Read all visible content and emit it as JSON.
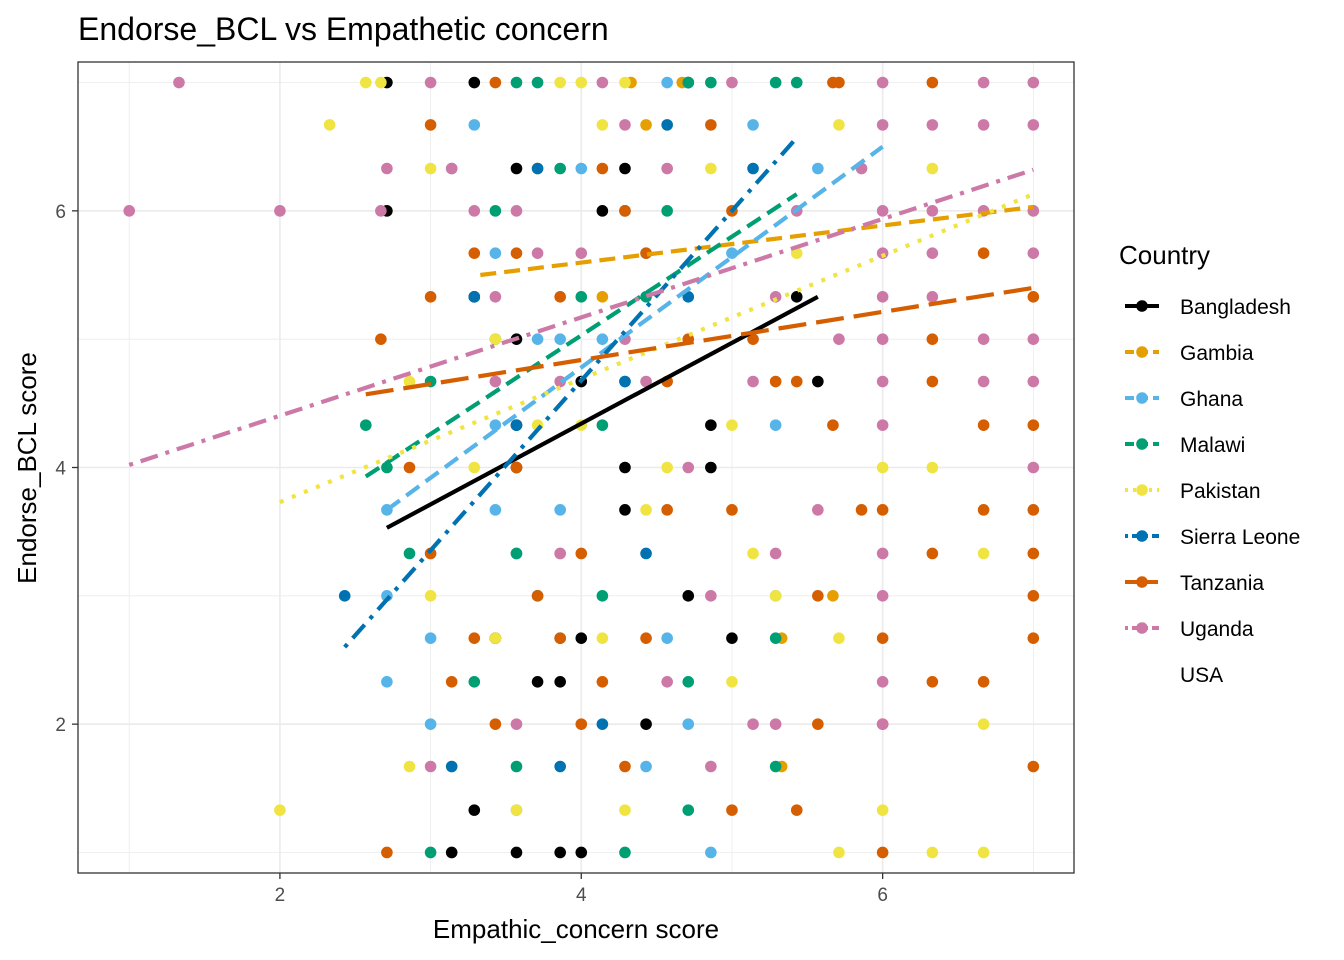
{
  "chart_data": {
    "type": "scatter",
    "title": "Endorse_BCL vs Empathetic concern",
    "xlabel": "Empathic_concern score",
    "ylabel": "Endorse_BCL score",
    "xlim": [
      0.66,
      7.27
    ],
    "ylim": [
      0.84,
      7.16
    ],
    "x_ticks": [
      2,
      4,
      6
    ],
    "y_ticks": [
      2,
      4,
      6
    ],
    "grid": true,
    "legend": {
      "title": "Country",
      "position": "right",
      "entries": [
        "Bangladesh",
        "Gambia",
        "Ghana",
        "Malawi",
        "Pakistan",
        "Sierra Leone",
        "Tanzania",
        "Uganda",
        "USA"
      ]
    },
    "series": [
      {
        "name": "Bangladesh",
        "color": "#000000",
        "line_style": "solid",
        "trend": [
          [
            2.71,
            3.53
          ],
          [
            5.57,
            5.33
          ]
        ],
        "points": [
          [
            2.71,
            7.0
          ],
          [
            2.71,
            6.0
          ],
          [
            3.29,
            7.0
          ],
          [
            3.29,
            5.33
          ],
          [
            3.57,
            6.33
          ],
          [
            3.57,
            5.0
          ],
          [
            3.57,
            4.33
          ],
          [
            3.57,
            4.0
          ],
          [
            3.71,
            2.33
          ],
          [
            3.86,
            1.0
          ],
          [
            4.0,
            1.0
          ],
          [
            4.0,
            2.67
          ],
          [
            4.14,
            6.0
          ],
          [
            4.29,
            6.33
          ],
          [
            4.29,
            4.0
          ],
          [
            4.43,
            2.0
          ],
          [
            4.71,
            7.0
          ],
          [
            4.71,
            3.0
          ],
          [
            4.86,
            4.33
          ],
          [
            4.86,
            4.0
          ],
          [
            5.0,
            2.67
          ],
          [
            5.57,
            4.67
          ],
          [
            5.43,
            5.33
          ],
          [
            3.43,
            2.67
          ],
          [
            3.29,
            1.33
          ],
          [
            3.14,
            1.0
          ],
          [
            3.57,
            1.0
          ],
          [
            4.0,
            4.67
          ],
          [
            3.86,
            2.33
          ],
          [
            4.29,
            3.67
          ]
        ]
      },
      {
        "name": "Gambia",
        "color": "#E69F00",
        "line_style": "dashed",
        "trend": [
          [
            3.33,
            5.5
          ],
          [
            7.0,
            6.03
          ]
        ],
        "points": [
          [
            4.33,
            7.0
          ],
          [
            4.67,
            7.0
          ],
          [
            4.43,
            6.67
          ],
          [
            5.33,
            2.67
          ],
          [
            5.67,
            3.0
          ],
          [
            5.33,
            1.67
          ],
          [
            3.71,
            6.33
          ],
          [
            4.14,
            5.33
          ]
        ]
      },
      {
        "name": "Ghana",
        "color": "#56B4E9",
        "line_style": "dashed",
        "trend": [
          [
            2.71,
            3.67
          ],
          [
            6.0,
            6.5
          ]
        ],
        "points": [
          [
            2.71,
            3.67
          ],
          [
            2.71,
            3.0
          ],
          [
            2.71,
            2.33
          ],
          [
            3.0,
            2.67
          ],
          [
            3.0,
            2.0
          ],
          [
            3.14,
            6.33
          ],
          [
            3.29,
            6.67
          ],
          [
            3.43,
            5.67
          ],
          [
            3.43,
            3.67
          ],
          [
            3.57,
            3.33
          ],
          [
            3.57,
            1.33
          ],
          [
            3.71,
            5.0
          ],
          [
            3.86,
            3.67
          ],
          [
            4.0,
            6.33
          ],
          [
            4.14,
            5.0
          ],
          [
            4.29,
            4.67
          ],
          [
            4.43,
            1.67
          ],
          [
            4.57,
            7.0
          ],
          [
            4.71,
            2.0
          ],
          [
            4.86,
            1.0
          ],
          [
            5.14,
            6.67
          ],
          [
            5.29,
            4.33
          ],
          [
            5.57,
            6.33
          ],
          [
            5.29,
            3.0
          ],
          [
            4.57,
            2.67
          ],
          [
            3.43,
            4.33
          ],
          [
            3.86,
            5.0
          ],
          [
            4.43,
            5.67
          ],
          [
            5.0,
            5.67
          ]
        ]
      },
      {
        "name": "Malawi",
        "color": "#009E73",
        "line_style": "dashed",
        "trend": [
          [
            2.57,
            3.93
          ],
          [
            5.43,
            6.13
          ]
        ],
        "points": [
          [
            2.57,
            4.33
          ],
          [
            2.71,
            4.0
          ],
          [
            2.86,
            3.33
          ],
          [
            3.0,
            1.0
          ],
          [
            3.0,
            4.67
          ],
          [
            3.29,
            2.33
          ],
          [
            3.43,
            5.0
          ],
          [
            3.57,
            3.33
          ],
          [
            3.71,
            7.0
          ],
          [
            3.57,
            7.0
          ],
          [
            3.86,
            6.33
          ],
          [
            4.14,
            4.33
          ],
          [
            4.29,
            1.0
          ],
          [
            4.43,
            5.33
          ],
          [
            4.57,
            6.0
          ],
          [
            4.71,
            2.33
          ],
          [
            4.71,
            7.0
          ],
          [
            4.86,
            7.0
          ],
          [
            5.29,
            7.0
          ],
          [
            5.43,
            7.0
          ],
          [
            5.29,
            2.67
          ],
          [
            5.29,
            1.67
          ],
          [
            4.14,
            3.0
          ],
          [
            3.71,
            3.0
          ],
          [
            4.0,
            5.33
          ],
          [
            3.86,
            2.67
          ],
          [
            4.71,
            1.33
          ],
          [
            3.57,
            1.67
          ],
          [
            3.43,
            6.0
          ]
        ]
      },
      {
        "name": "Pakistan",
        "color": "#F0E442",
        "line_style": "dotted",
        "trend": [
          [
            2.0,
            3.73
          ],
          [
            7.0,
            6.13
          ]
        ],
        "points": [
          [
            2.0,
            1.33
          ],
          [
            2.33,
            6.67
          ],
          [
            2.57,
            7.0
          ],
          [
            2.67,
            7.0
          ],
          [
            2.86,
            1.67
          ],
          [
            2.86,
            4.67
          ],
          [
            3.0,
            6.33
          ],
          [
            3.14,
            1.67
          ],
          [
            3.29,
            4.0
          ],
          [
            3.43,
            2.67
          ],
          [
            3.57,
            1.33
          ],
          [
            3.71,
            4.33
          ],
          [
            3.86,
            3.33
          ],
          [
            4.0,
            4.33
          ],
          [
            4.14,
            2.67
          ],
          [
            4.29,
            1.33
          ],
          [
            4.43,
            3.67
          ],
          [
            4.57,
            4.0
          ],
          [
            4.86,
            6.33
          ],
          [
            5.0,
            2.33
          ],
          [
            5.14,
            3.33
          ],
          [
            5.29,
            3.0
          ],
          [
            5.43,
            5.67
          ],
          [
            5.71,
            6.67
          ],
          [
            5.71,
            1.0
          ],
          [
            5.71,
            2.67
          ],
          [
            6.0,
            4.0
          ],
          [
            6.0,
            1.33
          ],
          [
            6.33,
            4.0
          ],
          [
            6.33,
            6.33
          ],
          [
            6.67,
            1.0
          ],
          [
            6.67,
            2.0
          ],
          [
            6.67,
            3.33
          ],
          [
            7.0,
            6.0
          ],
          [
            6.33,
            1.0
          ],
          [
            4.29,
            7.0
          ],
          [
            4.57,
            6.67
          ],
          [
            5.0,
            4.33
          ],
          [
            4.14,
            6.67
          ],
          [
            3.86,
            7.0
          ],
          [
            3.43,
            5.0
          ],
          [
            3.0,
            3.0
          ],
          [
            4.0,
            7.0
          ]
        ]
      },
      {
        "name": "Sierra Leone",
        "color": "#0072B2",
        "line_style": "dotdash",
        "trend": [
          [
            2.43,
            2.6
          ],
          [
            5.43,
            6.57
          ]
        ],
        "points": [
          [
            2.43,
            3.0
          ],
          [
            3.14,
            1.67
          ],
          [
            3.71,
            6.33
          ],
          [
            3.86,
            1.67
          ],
          [
            4.14,
            2.0
          ],
          [
            4.29,
            6.0
          ],
          [
            4.57,
            6.67
          ],
          [
            5.14,
            6.33
          ],
          [
            4.71,
            5.33
          ],
          [
            3.57,
            4.33
          ],
          [
            4.43,
            3.33
          ],
          [
            3.29,
            5.33
          ],
          [
            4.29,
            4.67
          ]
        ]
      },
      {
        "name": "Tanzania",
        "color": "#D55E00",
        "line_style": "longdash",
        "trend": [
          [
            2.57,
            4.57
          ],
          [
            7.0,
            5.4
          ]
        ],
        "points": [
          [
            2.67,
            5.0
          ],
          [
            2.71,
            1.0
          ],
          [
            2.86,
            4.0
          ],
          [
            3.0,
            6.67
          ],
          [
            3.0,
            5.33
          ],
          [
            3.0,
            3.33
          ],
          [
            3.14,
            2.33
          ],
          [
            3.29,
            5.67
          ],
          [
            3.29,
            2.67
          ],
          [
            3.43,
            7.0
          ],
          [
            3.43,
            2.0
          ],
          [
            3.57,
            4.0
          ],
          [
            3.57,
            5.67
          ],
          [
            3.71,
            3.0
          ],
          [
            3.86,
            5.33
          ],
          [
            4.0,
            2.0
          ],
          [
            4.0,
            3.33
          ],
          [
            4.14,
            2.33
          ],
          [
            4.14,
            6.33
          ],
          [
            4.29,
            1.67
          ],
          [
            4.43,
            2.67
          ],
          [
            4.43,
            5.67
          ],
          [
            4.57,
            3.67
          ],
          [
            4.57,
            4.67
          ],
          [
            4.71,
            5.0
          ],
          [
            4.86,
            6.67
          ],
          [
            5.0,
            1.33
          ],
          [
            5.0,
            3.67
          ],
          [
            5.14,
            5.0
          ],
          [
            5.29,
            4.67
          ],
          [
            5.43,
            1.33
          ],
          [
            5.43,
            4.67
          ],
          [
            5.57,
            3.0
          ],
          [
            5.57,
            2.0
          ],
          [
            5.67,
            4.33
          ],
          [
            5.67,
            7.0
          ],
          [
            5.71,
            7.0
          ],
          [
            5.86,
            3.67
          ],
          [
            6.0,
            3.67
          ],
          [
            6.0,
            2.67
          ],
          [
            6.0,
            2.0
          ],
          [
            6.0,
            1.0
          ],
          [
            6.33,
            4.67
          ],
          [
            6.33,
            5.0
          ],
          [
            6.33,
            3.33
          ],
          [
            6.33,
            2.33
          ],
          [
            6.67,
            2.33
          ],
          [
            6.67,
            3.67
          ],
          [
            6.67,
            4.33
          ],
          [
            7.0,
            5.33
          ],
          [
            7.0,
            4.33
          ],
          [
            7.0,
            3.67
          ],
          [
            7.0,
            3.33
          ],
          [
            7.0,
            3.0
          ],
          [
            7.0,
            2.67
          ],
          [
            7.0,
            1.67
          ],
          [
            6.67,
            5.67
          ],
          [
            6.33,
            7.0
          ],
          [
            5.0,
            6.0
          ],
          [
            4.29,
            6.0
          ],
          [
            3.86,
            2.67
          ]
        ]
      },
      {
        "name": "Uganda",
        "color": "#CC79A7",
        "line_style": "dotdash",
        "trend": [
          [
            1.0,
            4.02
          ],
          [
            7.0,
            6.32
          ]
        ],
        "points": [
          [
            1.0,
            6.0
          ],
          [
            1.33,
            7.0
          ],
          [
            2.0,
            6.0
          ],
          [
            2.71,
            6.33
          ],
          [
            2.67,
            6.0
          ],
          [
            3.0,
            7.0
          ],
          [
            3.0,
            1.67
          ],
          [
            3.14,
            6.33
          ],
          [
            3.29,
            6.0
          ],
          [
            3.43,
            5.33
          ],
          [
            3.57,
            2.0
          ],
          [
            3.71,
            5.67
          ],
          [
            3.86,
            4.67
          ],
          [
            4.0,
            5.67
          ],
          [
            4.14,
            7.0
          ],
          [
            4.29,
            5.0
          ],
          [
            4.43,
            4.67
          ],
          [
            4.57,
            2.33
          ],
          [
            4.71,
            4.0
          ],
          [
            4.86,
            3.0
          ],
          [
            5.0,
            7.0
          ],
          [
            5.14,
            4.67
          ],
          [
            5.29,
            5.33
          ],
          [
            5.43,
            6.0
          ],
          [
            5.57,
            3.67
          ],
          [
            5.71,
            5.0
          ],
          [
            5.86,
            6.33
          ],
          [
            6.0,
            7.0
          ],
          [
            6.0,
            6.67
          ],
          [
            6.0,
            6.0
          ],
          [
            6.0,
            5.67
          ],
          [
            6.0,
            5.33
          ],
          [
            6.0,
            5.0
          ],
          [
            6.0,
            4.67
          ],
          [
            6.0,
            4.33
          ],
          [
            6.0,
            3.33
          ],
          [
            6.0,
            3.0
          ],
          [
            6.0,
            2.33
          ],
          [
            6.0,
            2.0
          ],
          [
            6.33,
            6.67
          ],
          [
            6.33,
            6.0
          ],
          [
            6.33,
            5.67
          ],
          [
            6.33,
            5.33
          ],
          [
            6.67,
            7.0
          ],
          [
            6.67,
            6.67
          ],
          [
            6.67,
            6.0
          ],
          [
            6.67,
            5.0
          ],
          [
            6.67,
            4.67
          ],
          [
            7.0,
            7.0
          ],
          [
            7.0,
            6.67
          ],
          [
            7.0,
            6.0
          ],
          [
            7.0,
            5.67
          ],
          [
            7.0,
            5.0
          ],
          [
            7.0,
            4.67
          ],
          [
            7.0,
            4.0
          ],
          [
            5.29,
            3.33
          ],
          [
            5.14,
            2.0
          ],
          [
            4.86,
            1.67
          ],
          [
            4.57,
            6.33
          ],
          [
            4.29,
            6.67
          ],
          [
            3.86,
            3.33
          ],
          [
            3.57,
            6.0
          ],
          [
            3.43,
            4.67
          ],
          [
            5.29,
            2.0
          ]
        ]
      },
      {
        "name": "USA",
        "color": "#ffffff",
        "line_style": "none",
        "trend": [],
        "points": []
      }
    ]
  }
}
